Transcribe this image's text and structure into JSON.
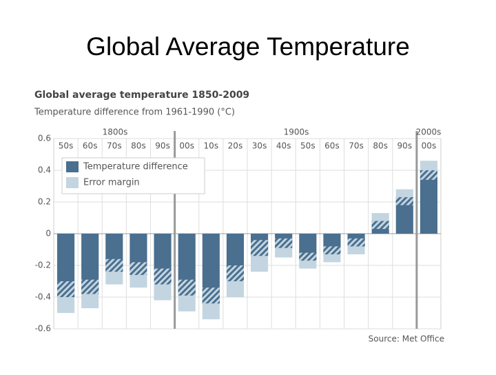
{
  "slide_title": "Global Average Temperature",
  "chart_data": {
    "type": "bar",
    "title": "Global average temperature 1850-2009",
    "subtitle": "Temperature difference from 1961-1990 (°C)",
    "eras": [
      "1800s",
      "1900s",
      "2000s"
    ],
    "categories": [
      "50s",
      "60s",
      "70s",
      "80s",
      "90s",
      "00s",
      "10s",
      "20s",
      "30s",
      "40s",
      "50s",
      "60s",
      "70s",
      "80s",
      "90s",
      "00s"
    ],
    "series": [
      {
        "name": "Temperature difference",
        "color": "#4a6f8f",
        "values": [
          -0.4,
          -0.38,
          -0.24,
          -0.26,
          -0.32,
          -0.39,
          -0.44,
          -0.3,
          -0.14,
          -0.09,
          -0.17,
          -0.13,
          -0.08,
          0.08,
          0.23,
          0.4
        ]
      },
      {
        "name": "Error margin",
        "color": "#c3d5e0",
        "values": [
          0.1,
          0.09,
          0.08,
          0.08,
          0.1,
          0.1,
          0.1,
          0.1,
          0.1,
          0.06,
          0.05,
          0.05,
          0.05,
          0.05,
          0.05,
          0.06
        ]
      }
    ],
    "ylim": [
      -0.6,
      0.6
    ],
    "yticks": [
      0.6,
      0.4,
      0.2,
      0,
      -0.2,
      -0.4,
      -0.6
    ],
    "grid": true,
    "source": "Source: Met Office"
  }
}
